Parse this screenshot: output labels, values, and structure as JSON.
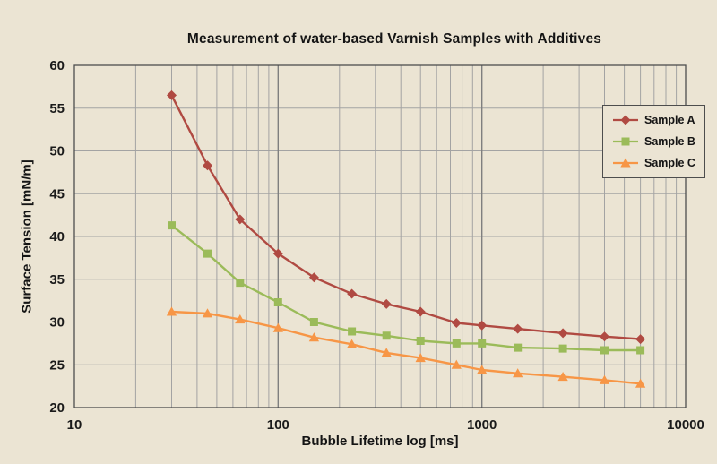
{
  "title": "Measurement of water-based Varnish Samples with Additives",
  "colors": {
    "background": "#ebe4d3",
    "grid_minor": "#a3a3a3",
    "grid_major": "#7f7f7f",
    "axis": "#4d4d4d",
    "text": "#141414"
  },
  "legend": {
    "position": "right"
  },
  "chart_data": {
    "type": "line",
    "title": "Measurement of water-based Varnish Samples with Additives",
    "xlabel": "Bubble Lifetime log [ms]",
    "ylabel": "Surface Tension [mN/m]",
    "x_scale": "log",
    "xlim": [
      10,
      10000
    ],
    "ylim": [
      20,
      60
    ],
    "x_ticks": [
      10,
      100,
      1000,
      10000
    ],
    "y_ticks": [
      20,
      25,
      30,
      35,
      40,
      45,
      50,
      55,
      60
    ],
    "grid": true,
    "legend_position": "right",
    "x": [
      30,
      45,
      65,
      100,
      150,
      230,
      340,
      500,
      750,
      1000,
      1500,
      2500,
      4000,
      6000
    ],
    "series": [
      {
        "name": "Sample A",
        "color": "#b04a42",
        "marker": "diamond",
        "values": [
          56.5,
          48.3,
          42.0,
          38.0,
          35.2,
          33.3,
          32.1,
          31.2,
          29.9,
          29.6,
          29.2,
          28.7,
          28.3,
          28.0
        ]
      },
      {
        "name": "Sample B",
        "color": "#9bbb59",
        "marker": "square",
        "values": [
          41.3,
          38.0,
          34.6,
          32.3,
          30.0,
          28.9,
          28.4,
          27.8,
          27.5,
          27.5,
          27.0,
          26.9,
          26.7,
          26.7
        ]
      },
      {
        "name": "Sample C",
        "color": "#f79646",
        "marker": "triangle",
        "values": [
          31.2,
          31.0,
          30.3,
          29.3,
          28.2,
          27.4,
          26.4,
          25.8,
          25.0,
          24.4,
          24.0,
          23.6,
          23.2,
          22.8
        ]
      }
    ]
  }
}
